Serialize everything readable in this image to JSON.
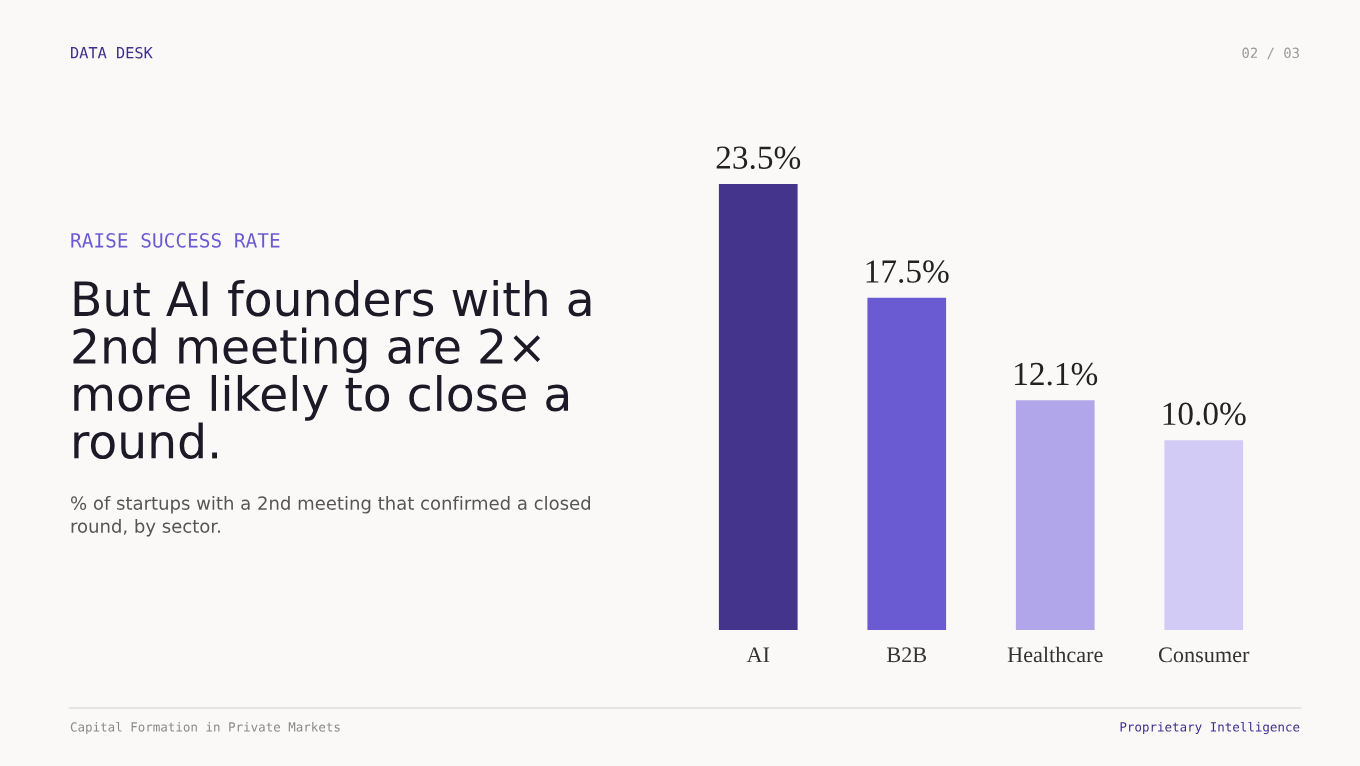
{
  "chart_data": {
    "type": "bar",
    "title": "But AI founders with a 2nd meeting are 2× more likely to close a round.",
    "subtitle": "% of startups with a 2nd meeting that confirmed a closed round, by sector.",
    "annotations": [
      "DATA DESK",
      "02 / 03",
      "RAISE SUCCESS RATE",
      "Capital Formation in Private Markets",
      "Proprietary Intelligence"
    ],
    "categories": [
      "AI",
      "B2B",
      "Healthcare",
      "Consumer"
    ],
    "values": [
      23.5,
      17.5,
      12.1,
      10.0
    ],
    "colors": [
      "#44348c",
      "#6b5bd2",
      "#b2a6ea",
      "#d2cbf5"
    ],
    "value_labels": [
      "23.5%",
      "17.5%",
      "12.1%",
      "10.0%"
    ],
    "grid": false,
    "legend": false
  }
}
